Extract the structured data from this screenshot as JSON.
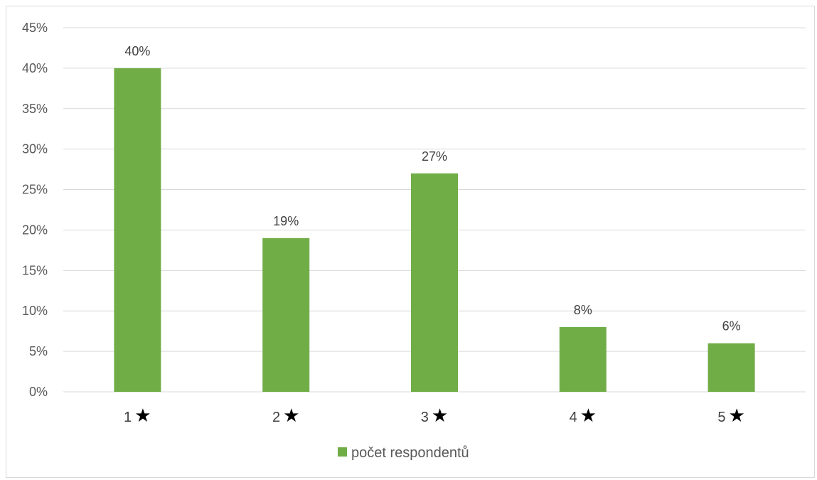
{
  "chart_data": {
    "type": "bar",
    "categories": [
      "1★",
      "2★",
      "3★",
      "4★",
      "5★"
    ],
    "series": [
      {
        "name": "počet respondentů",
        "values": [
          40,
          19,
          27,
          8,
          6
        ],
        "color": "#70ad47"
      }
    ],
    "data_labels": [
      "40%",
      "19%",
      "27%",
      "8%",
      "6%"
    ],
    "y_ticks": [
      "0%",
      "5%",
      "10%",
      "15%",
      "20%",
      "25%",
      "30%",
      "35%",
      "40%",
      "45%"
    ],
    "ylim": [
      0,
      45
    ],
    "y_unit": "%",
    "grid": true,
    "legend_position": "bottom",
    "title": "",
    "xlabel": "",
    "ylabel": ""
  }
}
